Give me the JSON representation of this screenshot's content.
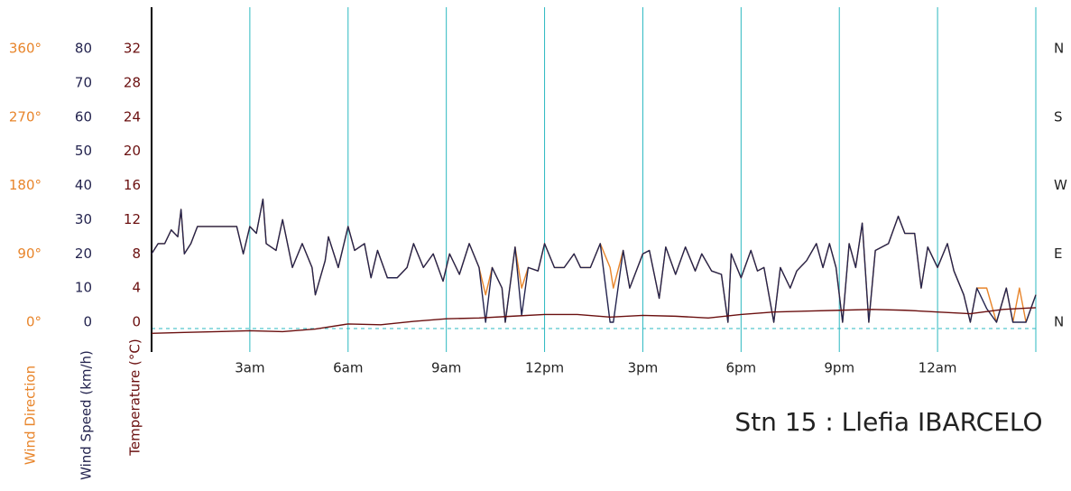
{
  "chart_data": {
    "type": "line",
    "title": "Stn 15 : Llefia IBARCELO",
    "xlim": [
      0,
      27
    ],
    "xticks": [
      {
        "value": 3,
        "label": "3am"
      },
      {
        "value": 6,
        "label": "6am"
      },
      {
        "value": 9,
        "label": "9am"
      },
      {
        "value": 12,
        "label": "12pm"
      },
      {
        "value": 15,
        "label": "3pm"
      },
      {
        "value": 18,
        "label": "6pm"
      },
      {
        "value": 21,
        "label": "9pm"
      },
      {
        "value": 24,
        "label": "12am"
      }
    ],
    "ylim": [
      0,
      80
    ],
    "yticks": [
      0,
      10,
      20,
      30,
      40,
      50,
      60,
      70,
      80
    ],
    "y2lim": [
      0,
      32
    ],
    "y2ticks": [
      0,
      4,
      8,
      12,
      16,
      20,
      24,
      28,
      32
    ],
    "y3lim": [
      0,
      360
    ],
    "y3ticks": [
      {
        "value": 0,
        "label": "0°"
      },
      {
        "value": 90,
        "label": "90°"
      },
      {
        "value": 180,
        "label": "180°"
      },
      {
        "value": 270,
        "label": "270°"
      },
      {
        "value": 360,
        "label": "360°"
      }
    ],
    "compass_ticks": [
      {
        "value": 0,
        "label": "N"
      },
      {
        "value": 90,
        "label": "E"
      },
      {
        "value": 180,
        "label": "W"
      },
      {
        "value": 270,
        "label": "S"
      },
      {
        "value": 360,
        "label": "N"
      }
    ],
    "grid": true,
    "x": [
      0,
      0.2,
      0.4,
      0.6,
      0.8,
      0.9,
      1.0,
      1.2,
      1.4,
      1.7,
      2.0,
      2.3,
      2.6,
      2.8,
      3.0,
      3.2,
      3.4,
      3.5,
      3.8,
      4.0,
      4.3,
      4.6,
      4.9,
      5.0,
      5.3,
      5.4,
      5.7,
      6.0,
      6.2,
      6.5,
      6.7,
      6.9,
      7.2,
      7.5,
      7.8,
      8.0,
      8.3,
      8.6,
      8.9,
      9.1,
      9.4,
      9.7,
      10.0,
      10.2,
      10.4,
      10.7,
      10.8,
      11.1,
      11.3,
      11.5,
      11.8,
      12.0,
      12.3,
      12.6,
      12.9,
      13.1,
      13.4,
      13.7,
      14.0,
      14.1,
      14.4,
      14.6,
      15.0,
      15.2,
      15.5,
      15.7,
      16.0,
      16.3,
      16.6,
      16.8,
      17.1,
      17.4,
      17.6,
      17.7,
      18.0,
      18.3,
      18.5,
      18.7,
      19.0,
      19.2,
      19.5,
      19.7,
      20.0,
      20.3,
      20.5,
      20.7,
      20.9,
      21.1,
      21.3,
      21.5,
      21.7,
      21.9,
      22.1,
      22.5,
      22.8,
      23.0,
      23.3,
      23.5,
      23.7,
      24.0,
      24.3,
      24.5,
      24.8,
      25.0,
      25.2,
      25.5,
      25.8,
      26.1,
      26.3,
      26.5,
      26.7,
      27.0
    ],
    "series": [
      {
        "name": "Wind Direction",
        "color": "#e8852b",
        "axis": "y3",
        "values": [
          90,
          103.5,
          103.5,
          121.5,
          112.5,
          148.5,
          90,
          103.5,
          126,
          126,
          126,
          126,
          126,
          90,
          126,
          117,
          162,
          103.5,
          94.5,
          135,
          72,
          103.5,
          72,
          36,
          81,
          112.5,
          72,
          126,
          94.5,
          103.5,
          58.5,
          94.5,
          58.5,
          58.5,
          72,
          103.5,
          72,
          90,
          54,
          90,
          63,
          103.5,
          72,
          36,
          72,
          45,
          0,
          99,
          45,
          72,
          67.5,
          103.5,
          72,
          72,
          90,
          72,
          72,
          103.5,
          72,
          45,
          94.5,
          45,
          90,
          94.5,
          31.5,
          99,
          63,
          99,
          67.5,
          90,
          67.5,
          63,
          0,
          90,
          58.5,
          94.5,
          67.5,
          72,
          0,
          72,
          45,
          67.5,
          81,
          103.5,
          72,
          103.5,
          72,
          0,
          103.5,
          72,
          130.5,
          0,
          94.5,
          103.5,
          139.5,
          117,
          117,
          45,
          99,
          72,
          103.5,
          67.5,
          36,
          0,
          45,
          45,
          0,
          45,
          0,
          45,
          0,
          36
        ]
      },
      {
        "name": "Wind Speed (km/h)",
        "color": "#24244f",
        "values": [
          20,
          23,
          23,
          27,
          25,
          33,
          20,
          23,
          28,
          28,
          28,
          28,
          28,
          20,
          28,
          26,
          36,
          23,
          21,
          30,
          16,
          23,
          16,
          8,
          18,
          25,
          16,
          28,
          21,
          23,
          13,
          21,
          13,
          13,
          16,
          23,
          16,
          20,
          12,
          20,
          14,
          23,
          16,
          0,
          16,
          10,
          0,
          22,
          2,
          16,
          15,
          23,
          16,
          16,
          20,
          16,
          16,
          23,
          0,
          0,
          21,
          10,
          20,
          21,
          7,
          22,
          14,
          22,
          15,
          20,
          15,
          14,
          0,
          20,
          13,
          21,
          15,
          16,
          0,
          16,
          10,
          15,
          18,
          23,
          16,
          23,
          16,
          0,
          23,
          16,
          29,
          0,
          21,
          23,
          31,
          26,
          26,
          10,
          22,
          16,
          23,
          15,
          8,
          0,
          10,
          4,
          0,
          10,
          0,
          0,
          0,
          8
        ]
      },
      {
        "name": "Temperature (°C)",
        "color": "#6b1010",
        "axis": "y2",
        "x": [
          0,
          1,
          2,
          3,
          4,
          5,
          6,
          7,
          8,
          9,
          10,
          11,
          12,
          13,
          14,
          15,
          16,
          17,
          18,
          19,
          20,
          21,
          22,
          23,
          24,
          25,
          26,
          27
        ],
        "values": [
          -1.3,
          -1.2,
          -1.1,
          -1.0,
          -1.1,
          -0.8,
          -0.2,
          -0.3,
          0.1,
          0.4,
          0.5,
          0.7,
          0.9,
          0.9,
          0.6,
          0.8,
          0.7,
          0.5,
          0.9,
          1.2,
          1.3,
          1.4,
          1.5,
          1.4,
          1.2,
          1.0,
          1.5,
          1.7
        ]
      }
    ]
  }
}
